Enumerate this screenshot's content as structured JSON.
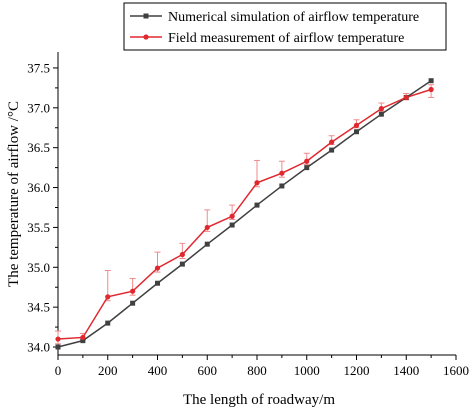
{
  "chart_data": {
    "type": "line",
    "title": "",
    "xlabel": "The length of roadway/m",
    "ylabel": "The temperature of airflow /°C",
    "xlim": [
      0,
      1600
    ],
    "ylim": [
      33.9,
      37.7
    ],
    "x_ticks": [
      0,
      200,
      400,
      600,
      800,
      1000,
      1200,
      1400,
      1600
    ],
    "y_ticks": [
      34.0,
      34.5,
      35.0,
      35.5,
      36.0,
      36.5,
      37.0,
      37.5
    ],
    "x_tick_labels": [
      "0",
      "200",
      "400",
      "600",
      "800",
      "1000",
      "1200",
      "1400",
      "1600"
    ],
    "y_tick_labels": [
      "34.0",
      "34.5",
      "35.0",
      "35.5",
      "36.0",
      "36.5",
      "37.0",
      "37.5"
    ],
    "grid": false,
    "legend_position": "top-right",
    "x": [
      0,
      100,
      200,
      300,
      400,
      500,
      600,
      700,
      800,
      900,
      1000,
      1100,
      1200,
      1300,
      1400,
      1500
    ],
    "series": [
      {
        "name": "Numerical simulation of airflow temperature",
        "color": "#404040",
        "marker": "square",
        "values": [
          34.0,
          34.08,
          34.3,
          34.55,
          34.8,
          35.04,
          35.29,
          35.53,
          35.78,
          36.02,
          36.25,
          36.47,
          36.7,
          36.92,
          37.13,
          37.34
        ]
      },
      {
        "name": "Field measurement of airflow temperature",
        "color": "#e0282e",
        "marker": "circle",
        "values": [
          34.1,
          34.12,
          34.63,
          34.7,
          34.99,
          35.16,
          35.5,
          35.64,
          36.06,
          36.18,
          36.33,
          36.57,
          36.78,
          36.99,
          37.13,
          37.23
        ],
        "error_upper": [
          0.1,
          0.05,
          0.33,
          0.16,
          0.2,
          0.14,
          0.22,
          0.14,
          0.28,
          0.15,
          0.1,
          0.08,
          0.07,
          0.07,
          0.05,
          0.06
        ],
        "error_lower": [
          0.06,
          0.03,
          0.05,
          0.05,
          0.05,
          0.05,
          0.05,
          0.04,
          0.05,
          0.05,
          0.04,
          0.03,
          0.03,
          0.03,
          0.03,
          0.1
        ]
      }
    ]
  }
}
